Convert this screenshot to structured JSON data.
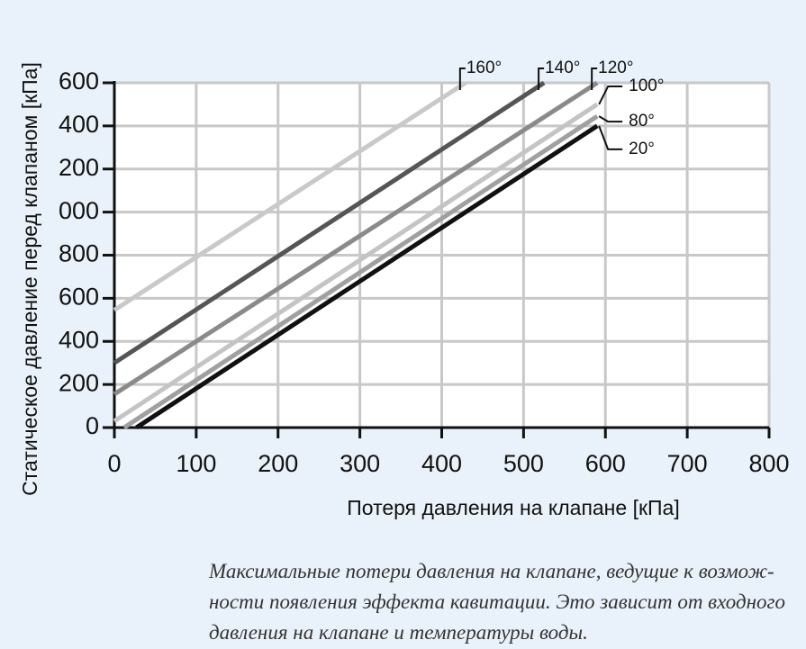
{
  "chart_data": {
    "type": "line",
    "xlabel": "Потеря давления на клапане [кПа]",
    "ylabel": "Статическое давление перед клапаном [кПа]",
    "xlim": [
      0,
      800
    ],
    "xticks": [
      0,
      100,
      200,
      300,
      400,
      500,
      600,
      700,
      800
    ],
    "ylim": [
      0,
      1600
    ],
    "yticks": [
      0,
      200,
      400,
      600,
      800,
      {
        "value": 1000,
        "label": "000"
      },
      {
        "value": 1200,
        "label": "200"
      },
      {
        "value": 1400,
        "label": "400"
      },
      {
        "value": 1600,
        "label": "600"
      }
    ],
    "grid": true,
    "series": [
      {
        "name": "160°",
        "color": "#c9c9c9",
        "x": [
          0,
          429
        ],
        "values": [
          545,
          1600
        ]
      },
      {
        "name": "140°",
        "color": "#555555",
        "x": [
          0,
          525
        ],
        "values": [
          300,
          1600
        ]
      },
      {
        "name": "120°",
        "color": "#8a8a8a",
        "x": [
          0,
          590
        ],
        "values": [
          155,
          1600
        ]
      },
      {
        "name": "100°",
        "color": "#c4c4c4",
        "x": [
          0,
          590
        ],
        "values": [
          30,
          1500
        ]
      },
      {
        "name": "80°",
        "color": "#a0a0a0",
        "x": [
          12,
          590
        ],
        "values": [
          0,
          1445
        ]
      },
      {
        "name": "20°",
        "color": "#111111",
        "x": [
          27,
          590
        ],
        "values": [
          0,
          1400
        ]
      }
    ],
    "caption": [
      "Максимальные потери давления на клапане, ведущие к возмож-",
      "ности появления эффекта кавитации. Это зависит от входного",
      "давления на клапане и температуры воды."
    ]
  }
}
